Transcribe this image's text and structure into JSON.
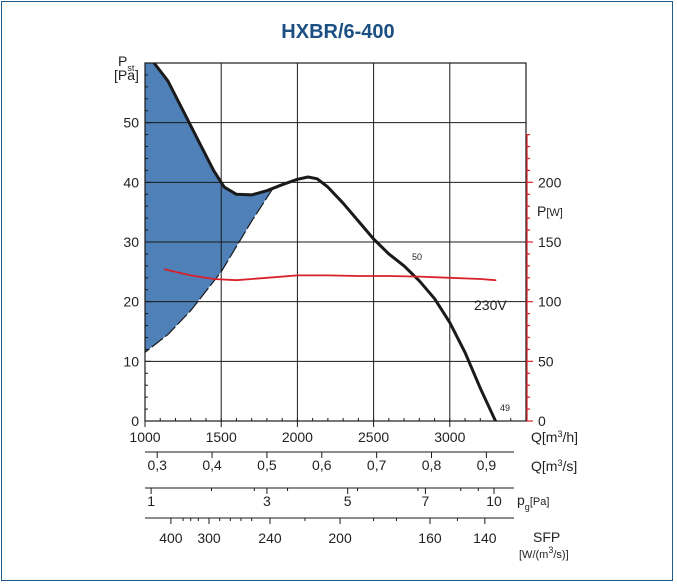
{
  "chart_data": {
    "type": "line",
    "title": "HXBR/6-400",
    "ylabel": "P",
    "ylabel_sub": "st",
    "yunit": "[Pa]",
    "y2label": "P",
    "y2unit": "[W]",
    "xlim": [
      1000,
      3500
    ],
    "ylim": [
      0,
      60
    ],
    "y2lim": [
      0,
      300
    ],
    "grid": true,
    "x_ticks": [
      "1000",
      "1500",
      "2000",
      "2500",
      "3000"
    ],
    "x_tick_values": [
      1000,
      1500,
      2000,
      2500,
      3000
    ],
    "y_ticks": [
      "0",
      "10",
      "20",
      "30",
      "40",
      "50"
    ],
    "y_tick_values": [
      0,
      10,
      20,
      30,
      40,
      50
    ],
    "y2_ticks": [
      "0",
      "50",
      "100",
      "150",
      "200"
    ],
    "y2_tick_values": [
      0,
      50,
      100,
      150,
      200
    ],
    "x_unit": "Q[m",
    "x_unit_sup": "3",
    "x_unit_end": "/h]",
    "series": [
      {
        "axis": "left",
        "color": "#1a1a1a",
        "points": [
          [
            1060,
            60
          ],
          [
            1150,
            57
          ],
          [
            1250,
            52
          ],
          [
            1350,
            47
          ],
          [
            1450,
            42
          ],
          [
            1520,
            39.2
          ],
          [
            1600,
            38
          ],
          [
            1700,
            37.9
          ],
          [
            1800,
            38.6
          ],
          [
            1900,
            39.6
          ],
          [
            2000,
            40.5
          ],
          [
            2070,
            40.9
          ],
          [
            2130,
            40.6
          ],
          [
            2200,
            39.2
          ],
          [
            2300,
            36.5
          ],
          [
            2400,
            33.5
          ],
          [
            2500,
            30.5
          ],
          [
            2600,
            28
          ],
          [
            2700,
            26
          ],
          [
            2800,
            23.5
          ],
          [
            2900,
            20.5
          ],
          [
            3000,
            16.5
          ],
          [
            3100,
            11.5
          ],
          [
            3200,
            5.5
          ],
          [
            3300,
            0
          ]
        ],
        "label": "50",
        "end_label": "49"
      },
      {
        "axis": "right",
        "color": "#d9212b",
        "points": [
          [
            1130,
            127
          ],
          [
            1300,
            122
          ],
          [
            1450,
            119
          ],
          [
            1600,
            118
          ],
          [
            1800,
            120
          ],
          [
            2000,
            122
          ],
          [
            2200,
            122
          ],
          [
            2400,
            121.5
          ],
          [
            2600,
            121.5
          ],
          [
            2800,
            121
          ],
          [
            3000,
            120
          ],
          [
            3200,
            119
          ],
          [
            3300,
            118
          ]
        ],
        "label": "230V"
      }
    ],
    "shaded_region": {
      "color": "#4f80b8",
      "upper": [
        [
          1000,
          60
        ],
        [
          1060,
          60
        ],
        [
          1150,
          57
        ],
        [
          1250,
          52
        ],
        [
          1350,
          47
        ],
        [
          1450,
          42
        ],
        [
          1520,
          39.2
        ],
        [
          1600,
          38
        ],
        [
          1700,
          37.9
        ],
        [
          1800,
          38.6
        ],
        [
          1840,
          39
        ]
      ],
      "lower": [
        [
          1840,
          39
        ],
        [
          1700,
          33.5
        ],
        [
          1500,
          25
        ],
        [
          1300,
          18.5
        ],
        [
          1150,
          14.5
        ],
        [
          1000,
          11.5
        ]
      ]
    },
    "secondary_axes": [
      {
        "label": "Q[m",
        "label_sup": "3",
        "label_end": "/s]",
        "ticks": [
          {
            "x": 1080,
            "label": "0,3"
          },
          {
            "x": 1440,
            "label": "0,4"
          },
          {
            "x": 1800,
            "label": "0,5"
          },
          {
            "x": 2160,
            "label": "0,6"
          },
          {
            "x": 2520,
            "label": "0,7"
          },
          {
            "x": 2880,
            "label": "0,8"
          },
          {
            "x": 3240,
            "label": "0,9"
          }
        ]
      },
      {
        "label": "p",
        "label_sub": "g",
        "label_end": "[Pa]",
        "ticks": [
          {
            "x": 1040,
            "label": "1"
          },
          {
            "x": 1800,
            "label": "3"
          },
          {
            "x": 2330,
            "label": "5"
          },
          {
            "x": 2840,
            "label": "7"
          },
          {
            "x": 3290,
            "label": "10"
          }
        ]
      },
      {
        "label": "SFP",
        "label2": "[W/(m",
        "label2_sup": "3",
        "label2_end": "/s)]",
        "ticks": [
          {
            "x": 1170,
            "label": "400"
          },
          {
            "x": 1420,
            "label": "300"
          },
          {
            "x": 1820,
            "label": "240"
          },
          {
            "x": 2280,
            "label": "200"
          },
          {
            "x": 2870,
            "label": "160"
          },
          {
            "x": 3230,
            "label": "140"
          }
        ]
      }
    ]
  }
}
